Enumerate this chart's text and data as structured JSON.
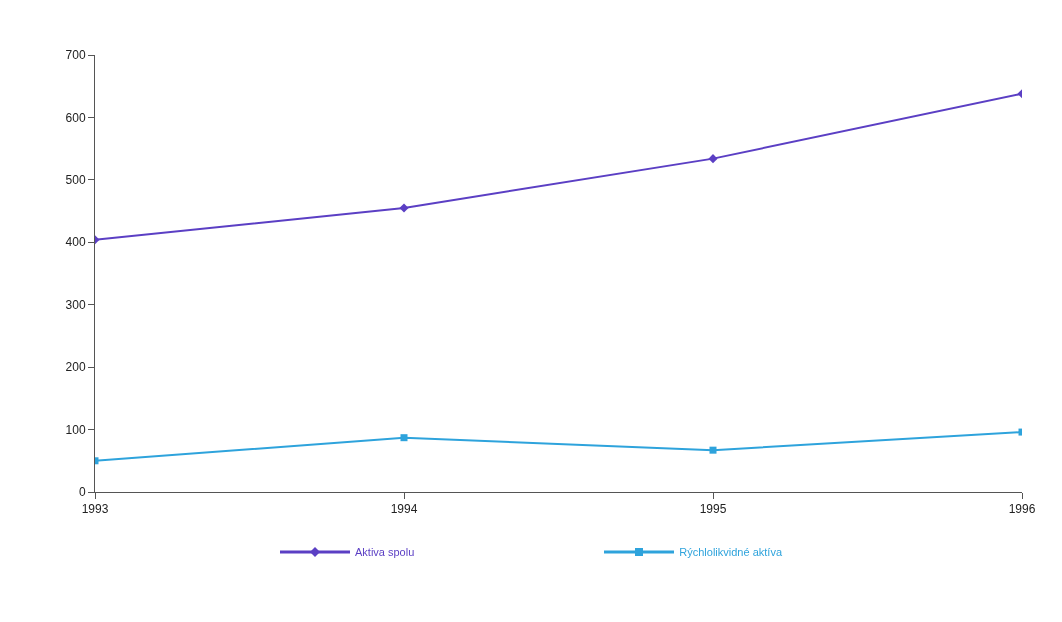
{
  "chart_data": {
    "type": "line",
    "x": [
      1993,
      1994,
      1995,
      1996
    ],
    "xlim": [
      1993,
      1996
    ],
    "xticks": [
      1993,
      1994,
      1995,
      1996
    ],
    "ylim": [
      0,
      700
    ],
    "yticks": [
      0,
      100,
      200,
      300,
      400,
      500,
      600,
      700
    ],
    "grid": false,
    "legend": "bottom",
    "line_style": "solid",
    "series": [
      {
        "name": "Aktiva spolu",
        "color": "#5b3fc4",
        "marker": "diamond",
        "values": [
          404,
          455,
          534,
          638
        ]
      },
      {
        "name": "Rýchlolikvidné aktíva",
        "color": "#2ea3dc",
        "marker": "square",
        "values": [
          50,
          87,
          67,
          96
        ]
      }
    ]
  }
}
